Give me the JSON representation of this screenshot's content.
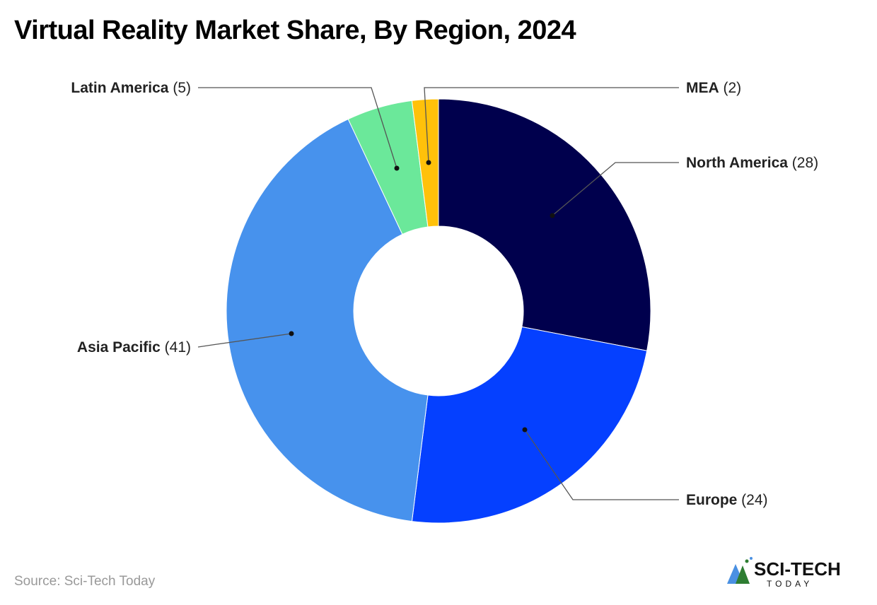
{
  "chart_data": {
    "type": "pie",
    "variant": "donut",
    "title": "Virtual Reality Market Share, By Region, 2024",
    "start_angle": "top, clockwise",
    "slices": [
      {
        "name": "North America",
        "value": 28,
        "color": "#00004d"
      },
      {
        "name": "Europe",
        "value": 24,
        "color": "#0540ff"
      },
      {
        "name": "Asia Pacific",
        "value": 41,
        "color": "#4792ed"
      },
      {
        "name": "Latin America",
        "value": 5,
        "color": "#6be89a"
      },
      {
        "name": "MEA",
        "value": 2,
        "color": "#ffc10a"
      }
    ],
    "legend": "leader-line labels"
  },
  "source": "Source: Sci-Tech Today",
  "logo": {
    "text": "SCI-TECH",
    "subtext": "TODAY"
  }
}
